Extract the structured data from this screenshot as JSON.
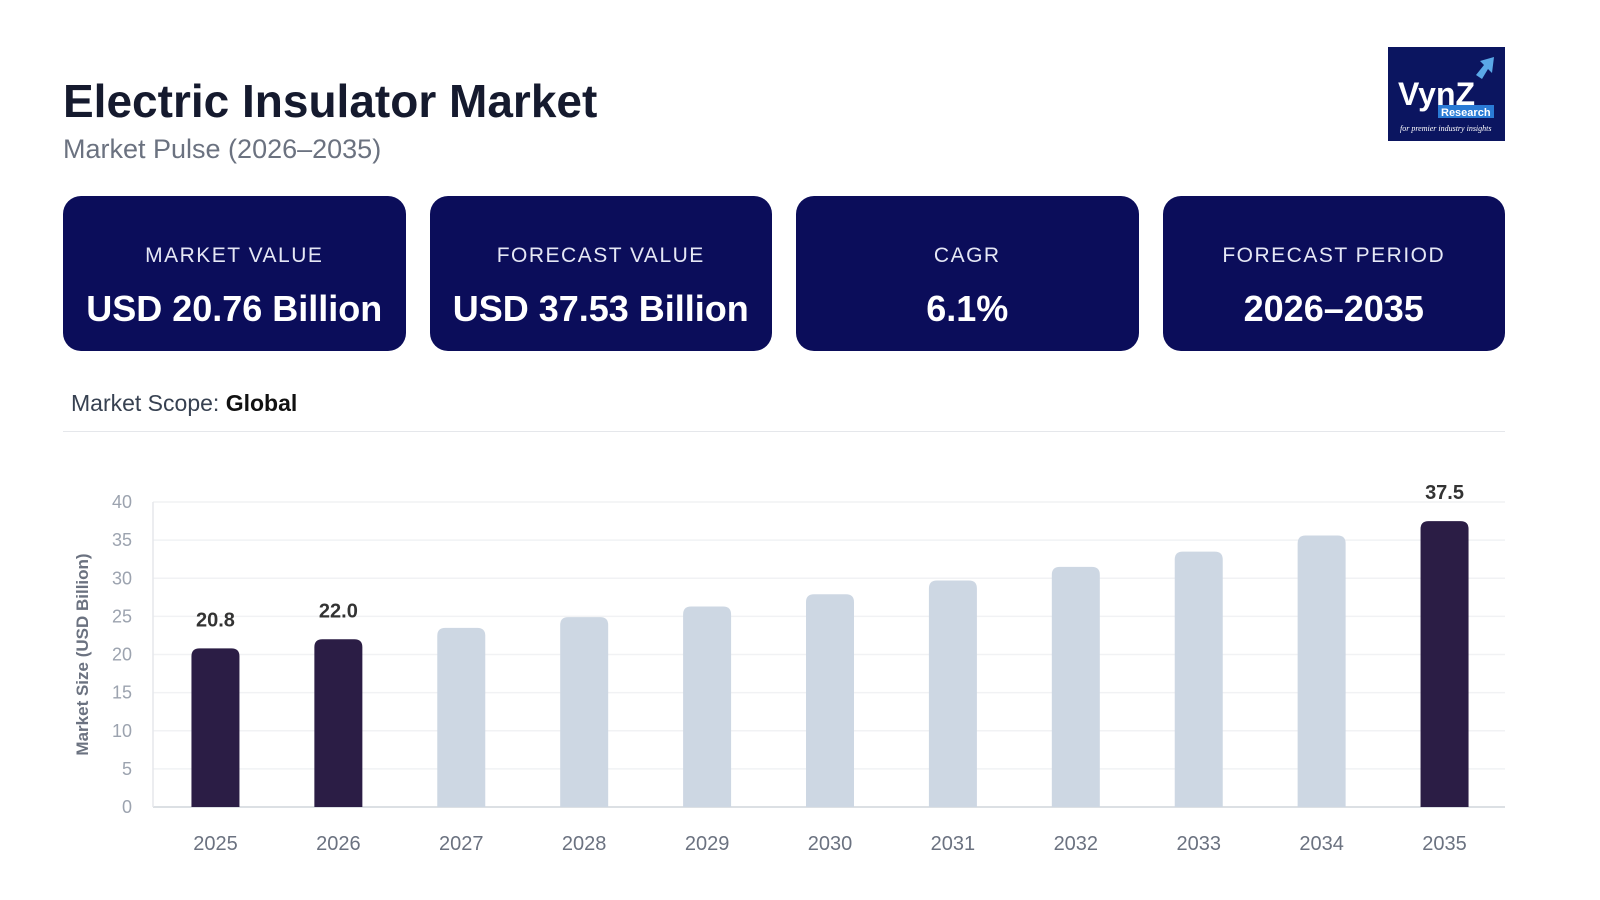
{
  "header": {
    "title": "Electric Insulator Market",
    "subtitle": "Market Pulse (2026–2035)",
    "logo_text": "VynZ Research",
    "logo_tagline": "for premier industry insights"
  },
  "cards": [
    {
      "label": "MARKET VALUE",
      "value": "USD 20.76 Billion"
    },
    {
      "label": "FORECAST VALUE",
      "value": "USD 37.53 Billion"
    },
    {
      "label": "CAGR",
      "value": "6.1%"
    },
    {
      "label": "FORECAST PERIOD",
      "value": "2026–2035"
    }
  ],
  "scope": {
    "label": "Market Scope:",
    "value": "Global"
  },
  "colors": {
    "highlight": "#2b1d45",
    "bar": "#cdd7e3",
    "card": "#0b0d5a"
  },
  "chart_data": {
    "type": "bar",
    "ylabel": "Market Size (USD Billion)",
    "ylim": [
      0,
      40
    ],
    "yticks": [
      0,
      5,
      10,
      15,
      20,
      25,
      30,
      35,
      40
    ],
    "grid": true,
    "categories": [
      "2025",
      "2026",
      "2027",
      "2028",
      "2029",
      "2030",
      "2031",
      "2032",
      "2033",
      "2034",
      "2035"
    ],
    "values": [
      20.8,
      22.0,
      23.5,
      24.9,
      26.3,
      27.9,
      29.7,
      31.5,
      33.5,
      35.6,
      37.5
    ],
    "highlighted": [
      "2025",
      "2026",
      "2035"
    ],
    "data_labels": {
      "2025": "20.8",
      "2026": "22.0",
      "2035": "37.5"
    }
  }
}
